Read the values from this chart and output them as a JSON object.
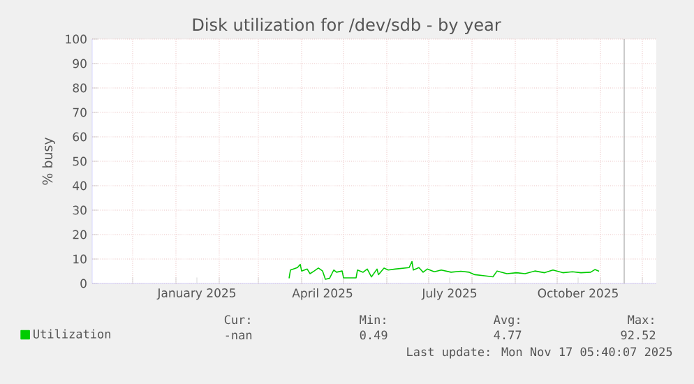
{
  "chart_data": {
    "type": "line",
    "title": "Disk utilization for /dev/sdb - by year",
    "ylabel": "% busy",
    "xlim": [
      "2024-11-02",
      "2025-12-11"
    ],
    "ylim": [
      0,
      100
    ],
    "yticks": [
      0,
      10,
      20,
      30,
      40,
      50,
      60,
      70,
      80,
      90,
      100
    ],
    "xticks": [
      {
        "value": "2024-12-01",
        "label": null
      },
      {
        "value": "2025-01-01",
        "label": null
      },
      {
        "value": "2025-01-16",
        "label": "January 2025"
      },
      {
        "value": "2025-02-01",
        "label": null
      },
      {
        "value": "2025-03-01",
        "label": null
      },
      {
        "value": "2025-04-01",
        "label": null
      },
      {
        "value": "2025-04-16",
        "label": "April 2025"
      },
      {
        "value": "2025-05-01",
        "label": null
      },
      {
        "value": "2025-06-01",
        "label": null
      },
      {
        "value": "2025-07-01",
        "label": null
      },
      {
        "value": "2025-07-16",
        "label": "July 2025"
      },
      {
        "value": "2025-08-01",
        "label": null
      },
      {
        "value": "2025-09-01",
        "label": null
      },
      {
        "value": "2025-10-01",
        "label": null
      },
      {
        "value": "2025-10-16",
        "label": "October 2025"
      },
      {
        "value": "2025-11-01",
        "label": null
      },
      {
        "value": "2025-12-01",
        "label": null
      }
    ],
    "grid": true,
    "legend": "bottom",
    "marker": "none",
    "line_style": "solid",
    "ref_lines": [
      {
        "axis": "x",
        "value": "2025-11-18",
        "label": null,
        "color": "#808080"
      }
    ],
    "annotations": [
      "Cur:",
      "Min:",
      "Avg:",
      "Max:",
      "-nan",
      "0.49",
      "4.77",
      "92.52",
      "Last update: Mon Nov 17 05:40:07 2025"
    ],
    "series": [
      {
        "name": "Utilization",
        "color": "#00cc00",
        "x": [
          "2025-03-23",
          "2025-03-24",
          "2025-03-29",
          "2025-03-31",
          "2025-04-01",
          "2025-04-05",
          "2025-04-07",
          "2025-04-10",
          "2025-04-13",
          "2025-04-16",
          "2025-04-18",
          "2025-04-21",
          "2025-04-24",
          "2025-04-26",
          "2025-04-30",
          "2025-05-01",
          "2025-05-10",
          "2025-05-11",
          "2025-05-15",
          "2025-05-18",
          "2025-05-21",
          "2025-05-25",
          "2025-05-26",
          "2025-05-30",
          "2025-06-02",
          "2025-06-07",
          "2025-06-17",
          "2025-06-19",
          "2025-06-20",
          "2025-06-24",
          "2025-06-27",
          "2025-06-30",
          "2025-07-05",
          "2025-07-10",
          "2025-07-17",
          "2025-07-24",
          "2025-07-30",
          "2025-08-03",
          "2025-08-09",
          "2025-08-16",
          "2025-08-19",
          "2025-08-26",
          "2025-09-02",
          "2025-09-08",
          "2025-09-15",
          "2025-09-22",
          "2025-09-28",
          "2025-10-05",
          "2025-10-12",
          "2025-10-18",
          "2025-10-25",
          "2025-10-28",
          "2025-10-31"
        ],
        "values": [
          2.1,
          5.5,
          6.5,
          7.8,
          5.1,
          5.9,
          4.0,
          5.1,
          6.3,
          5.1,
          1.7,
          2.1,
          5.5,
          4.6,
          5.1,
          2.3,
          2.3,
          5.5,
          4.6,
          5.9,
          2.7,
          5.9,
          3.6,
          6.3,
          5.5,
          5.9,
          6.5,
          9.0,
          5.5,
          6.5,
          4.6,
          5.9,
          4.8,
          5.5,
          4.6,
          5.0,
          4.6,
          3.6,
          3.2,
          2.7,
          5.1,
          4.0,
          4.4,
          4.0,
          5.1,
          4.4,
          5.5,
          4.4,
          4.8,
          4.4,
          4.6,
          5.7,
          5.0
        ]
      }
    ]
  }
}
